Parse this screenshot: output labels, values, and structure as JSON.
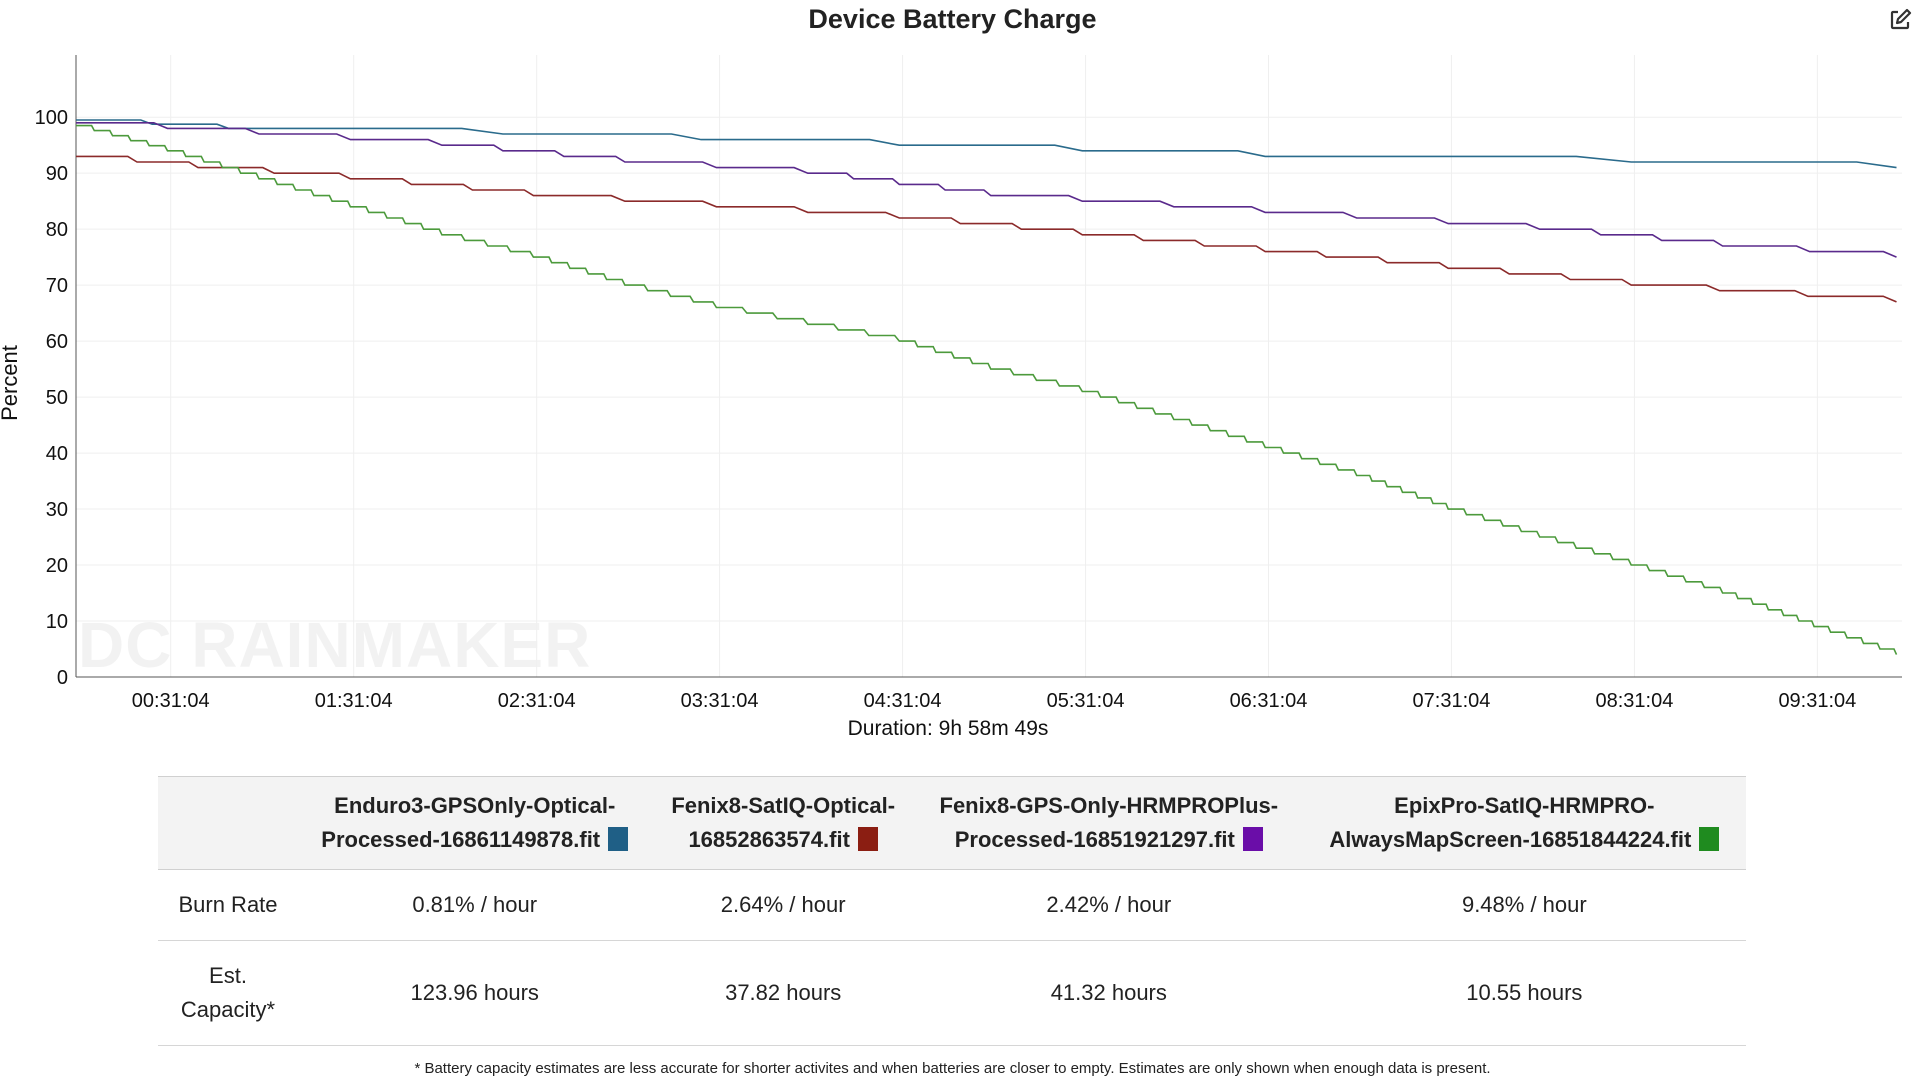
{
  "chart_data": {
    "type": "line",
    "title": "Device Battery Charge",
    "ylabel": "Percent",
    "xlabel": "Duration: 9h 58m 49s",
    "ylim": [
      0,
      100
    ],
    "xlim_seconds": [
      0,
      35929
    ],
    "yticks": [
      "0",
      "10",
      "20",
      "30",
      "40",
      "50",
      "60",
      "70",
      "80",
      "90",
      "100"
    ],
    "xticks": [
      "00:31:04",
      "01:31:04",
      "02:31:04",
      "03:31:04",
      "04:31:04",
      "05:31:04",
      "06:31:04",
      "07:31:04",
      "08:31:04",
      "09:31:04"
    ],
    "grid": true,
    "series": [
      {
        "name": "Enduro3-GPSOnly-Optical-Processed-16861149878.fit",
        "color": "#2a6b8c",
        "x": [
          "00:00:00",
          "00:50:00",
          "02:20:00",
          "04:30:00",
          "06:30:00",
          "08:30:00",
          "09:57:00"
        ],
        "y": [
          99.5,
          98,
          97,
          95,
          93,
          92,
          91
        ]
      },
      {
        "name": "Fenix8-SatIQ-Optical-16852863574.fit",
        "color": "#8b2a2a",
        "x": [
          "00:00:00",
          "00:40:00",
          "01:30:00",
          "02:30:00",
          "03:30:00",
          "04:30:00",
          "05:30:00",
          "06:30:00",
          "07:30:00",
          "08:30:00",
          "09:57:00"
        ],
        "y": [
          93,
          91,
          89,
          86,
          84,
          82,
          79,
          76,
          73,
          70,
          67
        ]
      },
      {
        "name": "Fenix8-GPS-Only-HRMPROPlus-Processed-16851921297.fit",
        "color": "#5a2a8c",
        "x": [
          "00:00:00",
          "01:00:00",
          "02:00:00",
          "03:00:00",
          "04:00:00",
          "05:00:00",
          "06:00:00",
          "07:00:00",
          "08:00:00",
          "09:00:00",
          "09:57:00"
        ],
        "y": [
          99,
          97,
          95,
          92,
          90,
          86,
          84,
          82,
          80,
          77,
          75
        ]
      },
      {
        "name": "EpixPro-SatIQ-HRMPRO-AlwaysMapScreen-16851844224.fit",
        "color": "#4c9a3c",
        "x": [
          "00:00:00",
          "00:30:00",
          "01:00:00",
          "01:30:00",
          "02:00:00",
          "02:30:00",
          "03:00:00",
          "03:30:00",
          "04:00:00",
          "04:30:00",
          "05:00:00",
          "05:30:00",
          "06:00:00",
          "06:30:00",
          "07:00:00",
          "07:30:00",
          "08:00:00",
          "08:30:00",
          "09:00:00",
          "09:30:00",
          "09:57:00"
        ],
        "y": [
          98.5,
          94,
          89,
          84,
          79,
          75,
          70,
          66,
          63,
          60,
          55,
          51,
          46,
          41,
          36,
          30,
          25,
          20,
          15,
          9,
          4
        ]
      }
    ]
  },
  "watermark": "DC RAINMAKER",
  "export_icon": "external-edit-icon",
  "table": {
    "headers": [
      {
        "line1": "Enduro3-GPSOnly-Optical-",
        "line2": "Processed-16861149878.fit",
        "color": "#1f5f86"
      },
      {
        "line1": "Fenix8-SatIQ-Optical-",
        "line2": "16852863574.fit",
        "color": "#8b1e12"
      },
      {
        "line1": "Fenix8-GPS-Only-HRMPROPlus-",
        "line2": "Processed-16851921297.fit",
        "color": "#6a0da8"
      },
      {
        "line1": "EpixPro-SatIQ-HRMPRO-",
        "line2": "AlwaysMapScreen-16851844224.fit",
        "color": "#1f8b1f"
      }
    ],
    "rows": [
      {
        "label1": "Burn Rate",
        "label2": "",
        "values": [
          "0.81% / hour",
          "2.64% / hour",
          "2.42% / hour",
          "9.48% / hour"
        ]
      },
      {
        "label1": "Est.",
        "label2": "Capacity*",
        "values": [
          "123.96 hours",
          "37.82 hours",
          "41.32 hours",
          "10.55 hours"
        ]
      }
    ]
  },
  "footnote": "* Battery capacity estimates are less accurate for shorter activites and when batteries are closer to empty. Estimates are only shown when enough data is present."
}
